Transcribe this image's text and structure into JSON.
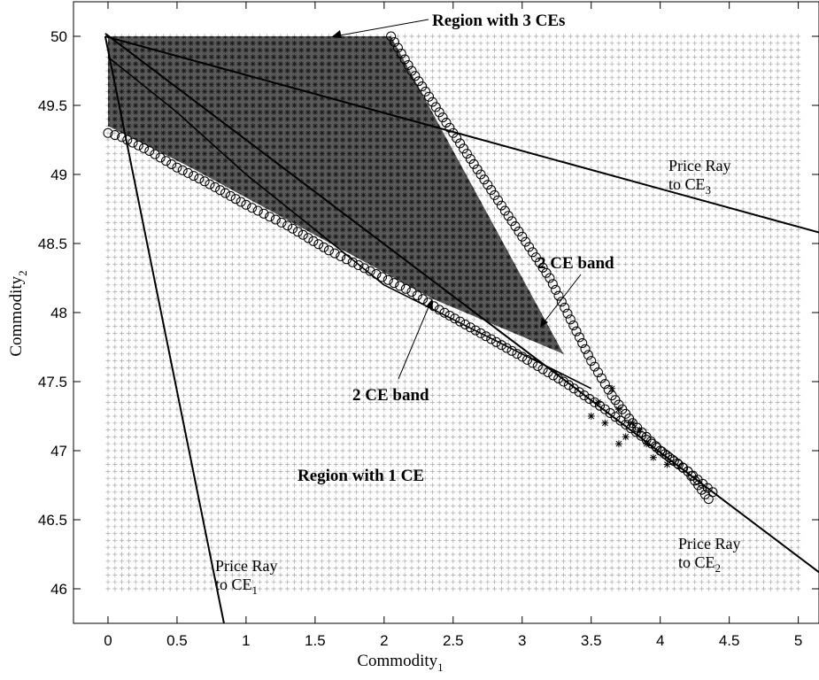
{
  "chart_data": {
    "type": "scatter",
    "title": "",
    "xlabel": "Commodity",
    "xlabel_sub": "1",
    "ylabel": "Commodity",
    "ylabel_sub": "2",
    "xlim": [
      -0.25,
      5.15
    ],
    "ylim": [
      45.75,
      50.25
    ],
    "xticks": [
      0,
      0.5,
      1,
      1.5,
      2,
      2.5,
      3,
      3.5,
      4,
      4.5,
      5
    ],
    "xtick_labels": [
      "0",
      "0.5",
      "1",
      "1.5",
      "2",
      "2.5",
      "3",
      "3.5",
      "4",
      "4.5",
      "5"
    ],
    "yticks": [
      46,
      46.5,
      47,
      47.5,
      48,
      48.5,
      49,
      49.5,
      50
    ],
    "ytick_labels": [
      "46",
      "46.5",
      "47",
      "47.5",
      "48",
      "48.5",
      "49",
      "49.5",
      "50"
    ],
    "grid": {
      "x_range": [
        0,
        5
      ],
      "y_range": [
        46,
        50
      ],
      "step": 0.05,
      "marker": "+",
      "color": "#a6a6a6"
    },
    "three_ce_region": {
      "marker": "*",
      "polygon": [
        [
          0,
          50
        ],
        [
          2.05,
          50
        ],
        [
          3.3,
          47.7
        ],
        [
          2.35,
          48.1
        ],
        [
          0.6,
          49.05
        ],
        [
          0,
          49.35
        ]
      ]
    },
    "circles_lower_boundary": [
      [
        0,
        49.3
      ],
      [
        0.1,
        49.27
      ],
      [
        0.3,
        49.17
      ],
      [
        0.5,
        49.05
      ],
      [
        0.7,
        48.95
      ],
      [
        1.0,
        48.78
      ],
      [
        1.3,
        48.63
      ],
      [
        1.6,
        48.45
      ],
      [
        1.9,
        48.3
      ],
      [
        2.2,
        48.15
      ],
      [
        2.4,
        48.02
      ],
      [
        2.7,
        47.85
      ],
      [
        3.0,
        47.68
      ],
      [
        3.3,
        47.5
      ],
      [
        3.6,
        47.3
      ],
      [
        3.9,
        47.08
      ],
      [
        4.2,
        46.85
      ],
      [
        4.35,
        46.65
      ]
    ],
    "circles_upper_boundary": [
      [
        2.05,
        50
      ],
      [
        2.2,
        49.75
      ],
      [
        2.4,
        49.45
      ],
      [
        2.6,
        49.15
      ],
      [
        2.8,
        48.85
      ],
      [
        3.0,
        48.55
      ],
      [
        3.2,
        48.25
      ],
      [
        3.35,
        47.95
      ],
      [
        3.5,
        47.65
      ],
      [
        3.65,
        47.4
      ],
      [
        3.8,
        47.2
      ],
      [
        4.0,
        47.0
      ],
      [
        4.2,
        46.85
      ],
      [
        4.38,
        46.7
      ]
    ],
    "stars_band": [
      [
        3.55,
        47.35
      ],
      [
        3.6,
        47.2
      ],
      [
        3.7,
        47.3
      ],
      [
        3.75,
        47.1
      ],
      [
        3.8,
        47.2
      ],
      [
        3.9,
        47.05
      ],
      [
        3.95,
        46.95
      ],
      [
        4.05,
        46.9
      ],
      [
        3.65,
        47.45
      ],
      [
        3.85,
        47.15
      ],
      [
        3.5,
        47.25
      ],
      [
        3.7,
        47.05
      ]
    ],
    "price_rays": [
      {
        "x": [
          -0.02,
          0.84
        ],
        "y": [
          50.0,
          45.75
        ]
      },
      {
        "x": [
          -0.02,
          5.15
        ],
        "y": [
          50.02,
          46.12
        ]
      },
      {
        "x": [
          -0.02,
          5.15
        ],
        "y": [
          50.0,
          48.58
        ]
      }
    ],
    "curve_mid": {
      "x": [
        0.0,
        0.5,
        1.0,
        1.5,
        2.0,
        2.5,
        3.0,
        3.5
      ],
      "y": [
        49.85,
        49.45,
        49.0,
        48.6,
        48.2,
        47.95,
        47.7,
        47.45
      ]
    },
    "annotations": {
      "region3": "Region with 3 CEs",
      "band2_upper": "2 CE band",
      "band2_lower": "2 CE band",
      "region1": "Region with 1 CE",
      "ray3_line1": "Price Ray",
      "ray3_line2": "to CE",
      "ray3_sub": "3",
      "ray2_line1": "Price Ray",
      "ray2_line2": "to CE",
      "ray2_sub": "2",
      "ray1_line1": "Price Ray",
      "ray1_line2": "to CE",
      "ray1_sub": "1"
    }
  }
}
